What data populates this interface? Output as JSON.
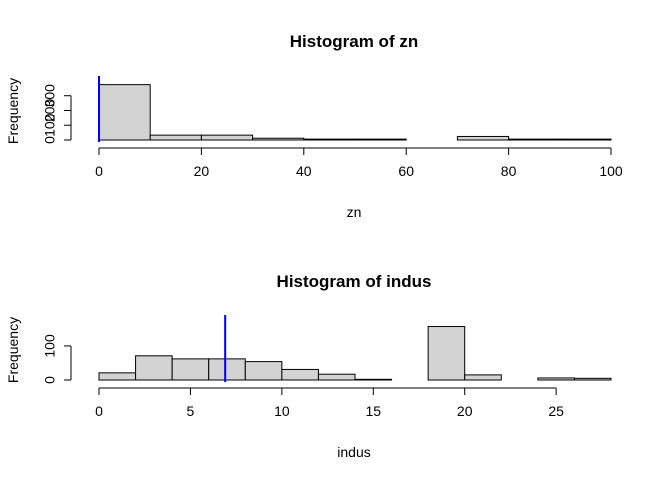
{
  "chart_data": [
    {
      "type": "bar",
      "title": "Histogram of zn",
      "xlabel": "zn",
      "ylabel": "Frequency",
      "bin_edges": [
        0,
        10,
        20,
        30,
        40,
        50,
        60,
        70,
        80,
        90,
        100
      ],
      "values": [
        375,
        33,
        33,
        12,
        6,
        6,
        0,
        24,
        6,
        6
      ],
      "x_ticks": [
        0,
        20,
        40,
        60,
        80,
        100
      ],
      "y_ticks": [
        0,
        100,
        200,
        300
      ],
      "ylim": [
        0,
        420
      ],
      "marker_line": {
        "x": 0,
        "color": "#0000ff"
      }
    },
    {
      "type": "bar",
      "title": "Histogram of indus",
      "xlabel": "indus",
      "ylabel": "Frequency",
      "bin_edges": [
        0,
        2,
        4,
        6,
        8,
        10,
        12,
        14,
        16,
        18,
        20,
        22,
        24,
        26,
        28
      ],
      "values": [
        21,
        71,
        62,
        62,
        54,
        31,
        17,
        2,
        0,
        157,
        15,
        0,
        6,
        5
      ],
      "x_ticks": [
        0,
        5,
        10,
        15,
        20,
        25
      ],
      "y_ticks": [
        0,
        100
      ],
      "ylim": [
        0,
        185
      ],
      "marker_line": {
        "x": 6.9,
        "color": "#0000ff"
      }
    }
  ]
}
